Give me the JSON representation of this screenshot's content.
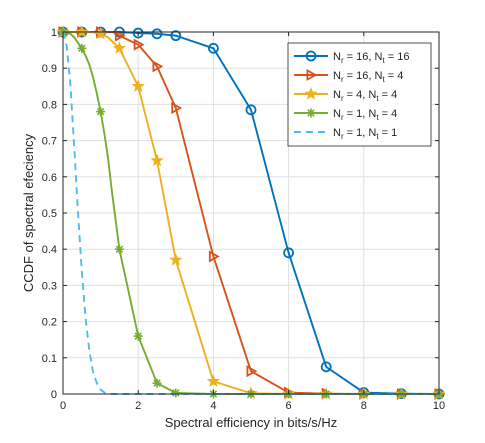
{
  "chart_data": {
    "type": "line",
    "title": "",
    "xlabel": "Spectral efficiency in bits/s/Hz",
    "ylabel": "CCDF of spectral efeciency",
    "xlim": [
      0,
      10
    ],
    "ylim": [
      0,
      1
    ],
    "grid": true,
    "legend_position": "top-right",
    "xticks": [
      0,
      2,
      4,
      6,
      8,
      10
    ],
    "yticks": [
      0,
      0.1,
      0.2,
      0.3,
      0.4,
      0.5,
      0.6,
      0.7,
      0.8,
      0.9,
      1
    ],
    "series": [
      {
        "legend": [
          "N",
          "r",
          " = 16, N",
          "t",
          " = 16"
        ],
        "color": "#0072BD",
        "marker": "circle",
        "dash": false,
        "x": [
          0,
          0.1,
          0.2,
          0.3,
          0.4,
          0.5,
          0.6,
          0.7,
          0.8,
          0.9,
          1.0,
          1.1,
          1.2,
          1.3,
          1.4,
          1.5,
          2,
          2.5,
          3,
          4,
          5,
          6,
          7,
          8,
          9,
          10
        ],
        "y": [
          1,
          1,
          1,
          1,
          1,
          1,
          1,
          1,
          1,
          1,
          1,
          1,
          1,
          1,
          1,
          1,
          0.997,
          0.995,
          0.99,
          0.955,
          0.785,
          0.39,
          0.075,
          0.004,
          0.001,
          0
        ]
      },
      {
        "legend": [
          "N",
          "r",
          " = 16, N",
          "t",
          " = 4"
        ],
        "color": "#D95319",
        "marker": "triangle-right",
        "dash": false,
        "x": [
          0,
          0.1,
          0.2,
          0.3,
          0.4,
          0.5,
          0.6,
          0.7,
          0.8,
          0.9,
          1.0,
          1.1,
          1.2,
          1.3,
          1.4,
          1.5,
          2,
          2.5,
          3,
          4,
          5,
          6,
          7,
          8,
          9,
          10
        ],
        "y": [
          1,
          1,
          1,
          1,
          1,
          1,
          1,
          1,
          1,
          1,
          1,
          1,
          1,
          1,
          0.997,
          0.99,
          0.965,
          0.905,
          0.79,
          0.38,
          0.063,
          0.004,
          0.001,
          0,
          0,
          0
        ]
      },
      {
        "legend": [
          "N",
          "r",
          " = 4, N",
          "t",
          " = 4"
        ],
        "color": "#EDB120",
        "marker": "pentagram",
        "dash": false,
        "x": [
          0,
          0.1,
          0.2,
          0.3,
          0.4,
          0.5,
          0.6,
          0.7,
          0.8,
          0.9,
          1.0,
          1.1,
          1.2,
          1.3,
          1.4,
          1.5,
          2,
          2.5,
          3,
          4,
          5,
          6,
          7,
          8,
          9,
          10
        ],
        "y": [
          1,
          1,
          1,
          1,
          1,
          1,
          1,
          1,
          0.999,
          0.997,
          0.995,
          0.99,
          0.985,
          0.975,
          0.965,
          0.955,
          0.85,
          0.645,
          0.37,
          0.035,
          0.002,
          0,
          0,
          0,
          0,
          0
        ]
      },
      {
        "legend": [
          "N",
          "r",
          " = 1, N",
          "t",
          " = 4"
        ],
        "color": "#77AC30",
        "marker": "asterisk",
        "dash": false,
        "x": [
          0,
          0.1,
          0.2,
          0.3,
          0.4,
          0.5,
          0.6,
          0.7,
          0.8,
          0.9,
          1.0,
          1.1,
          1.2,
          1.3,
          1.4,
          1.5,
          2,
          2.5,
          3,
          4,
          5,
          6,
          7,
          8,
          9,
          10
        ],
        "y": [
          1,
          0.998,
          0.995,
          0.985,
          0.97,
          0.955,
          0.935,
          0.91,
          0.875,
          0.83,
          0.78,
          0.72,
          0.65,
          0.56,
          0.48,
          0.4,
          0.16,
          0.03,
          0.003,
          0,
          0,
          0,
          0,
          0,
          0,
          0
        ]
      },
      {
        "legend": [
          "N",
          "r",
          " = 1, N",
          "t",
          " = 1"
        ],
        "color": "#4DBEEE",
        "marker": "none",
        "dash": true,
        "x": [
          0,
          0.1,
          0.2,
          0.3,
          0.4,
          0.5,
          0.6,
          0.7,
          0.8,
          0.9,
          1.0,
          1.1,
          1.2,
          1.3,
          1.5,
          2,
          3,
          4,
          5,
          6,
          7,
          8,
          9,
          10
        ],
        "y": [
          1,
          0.96,
          0.85,
          0.68,
          0.5,
          0.34,
          0.21,
          0.12,
          0.06,
          0.03,
          0.012,
          0.004,
          0.001,
          0,
          0,
          0,
          0,
          0,
          0,
          0,
          0,
          0,
          0,
          0
        ]
      }
    ]
  }
}
